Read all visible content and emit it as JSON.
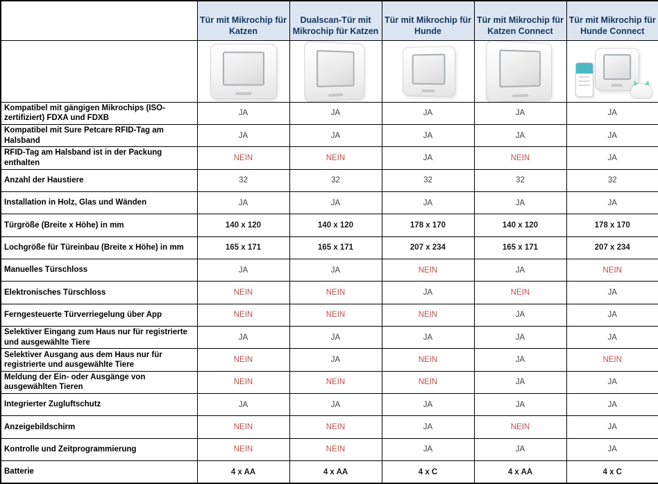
{
  "colors": {
    "header_bg": "#dbe5f1",
    "header_text": "#17365d",
    "ja_text": "#404040",
    "nein_text": "#c0504d",
    "bold_value_text": "#1a1a1a",
    "border": "#000000",
    "connect_accent_teal": "#49b9c7"
  },
  "table": {
    "columns": [
      "Tür mit Mikrochip für Katzen",
      "Dualscan-Tür mit Mikrochip für Katzen",
      "Tür mit Mikrochip für Hunde",
      "Tür mit Mikrochip für Katzen Connect",
      "Tür mit Mikrochip für Hunde Connect"
    ],
    "products": [
      {
        "name": "Tür mit Mikrochip für Katzen",
        "image": "cat-flap-front-view"
      },
      {
        "name": "Dualscan-Tür mit Mikrochip für Katzen",
        "image": "cat-flap-angled-view"
      },
      {
        "name": "Tür mit Mikrochip für Hunde",
        "image": "dog-flap-angled-view"
      },
      {
        "name": "Tür mit Mikrochip für Katzen Connect",
        "image": "cat-flap-connect-angled-view"
      },
      {
        "name": "Tür mit Mikrochip für Hunde Connect",
        "image": "dog-flap-with-smartphone-app-and-hub"
      }
    ],
    "rows": [
      {
        "label": "Kompatibel mit gängigen Mikrochips (ISO-zertifiziert) FDXA und FDXB",
        "values": [
          "JA",
          "JA",
          "JA",
          "JA",
          "JA"
        ],
        "bold": false
      },
      {
        "label": "Kompatibel mit Sure Petcare RFID-Tag am Halsband",
        "values": [
          "JA",
          "JA",
          "JA",
          "JA",
          "JA"
        ],
        "bold": false
      },
      {
        "label": "RFID-Tag am Halsband ist in der Packung enthalten",
        "values": [
          "NEIN",
          "NEIN",
          "JA",
          "NEIN",
          "JA"
        ],
        "bold": false
      },
      {
        "label": "Anzahl der Haustiere",
        "values": [
          "32",
          "32",
          "32",
          "32",
          "32"
        ],
        "bold": false
      },
      {
        "label": "Installation in Holz, Glas und Wänden",
        "values": [
          "JA",
          "JA",
          "JA",
          "JA",
          "JA"
        ],
        "bold": false
      },
      {
        "label": "Türgröße (Breite x Höhe) in mm",
        "values": [
          "140 x 120",
          "140 x 120",
          "178 x 170",
          "140 x 120",
          "178 x 170"
        ],
        "bold": true
      },
      {
        "label": "Lochgröße für Türeinbau (Breite x Höhe) in mm",
        "values": [
          "165 x 171",
          "165 x 171",
          "207 x 234",
          "165 x 171",
          "207 x 234"
        ],
        "bold": true
      },
      {
        "label": "Manuelles Türschloss",
        "values": [
          "JA",
          "JA",
          "NEIN",
          "JA",
          "NEIN"
        ],
        "bold": false
      },
      {
        "label": "Elektronisches Türschloss",
        "values": [
          "NEIN",
          "NEIN",
          "JA",
          "NEIN",
          "JA"
        ],
        "bold": false
      },
      {
        "label": "Ferngesteuerte Türverriegelung über App",
        "values": [
          "NEIN",
          "NEIN",
          "NEIN",
          "JA",
          "JA"
        ],
        "bold": false
      },
      {
        "label": "Selektiver Eingang zum Haus nur für registrierte und ausgewählte Tiere",
        "values": [
          "JA",
          "JA",
          "JA",
          "JA",
          "JA"
        ],
        "bold": false
      },
      {
        "label": "Selektiver Ausgang aus dem Haus nur für registrierte und ausgewählte Tiere",
        "values": [
          "NEIN",
          "JA",
          "NEIN",
          "JA",
          "NEIN"
        ],
        "bold": false
      },
      {
        "label": "Meldung der Ein- oder Ausgänge von ausgewählten Tieren",
        "values": [
          "NEIN",
          "NEIN",
          "NEIN",
          "JA",
          "JA"
        ],
        "bold": false
      },
      {
        "label": "Integrierter Zugluftschutz",
        "values": [
          "JA",
          "JA",
          "JA",
          "JA",
          "JA"
        ],
        "bold": false
      },
      {
        "label": "Anzeigebildschirm",
        "values": [
          "NEIN",
          "NEIN",
          "JA",
          "NEIN",
          "JA"
        ],
        "bold": false
      },
      {
        "label": "Kontrolle und Zeitprogrammierung",
        "values": [
          "NEIN",
          "NEIN",
          "JA",
          "JA",
          "JA"
        ],
        "bold": false
      },
      {
        "label": "Batterie",
        "values": [
          "4 x AA",
          "4 x AA",
          "4 x C",
          "4 x AA",
          "4 x C"
        ],
        "bold": true
      }
    ]
  }
}
